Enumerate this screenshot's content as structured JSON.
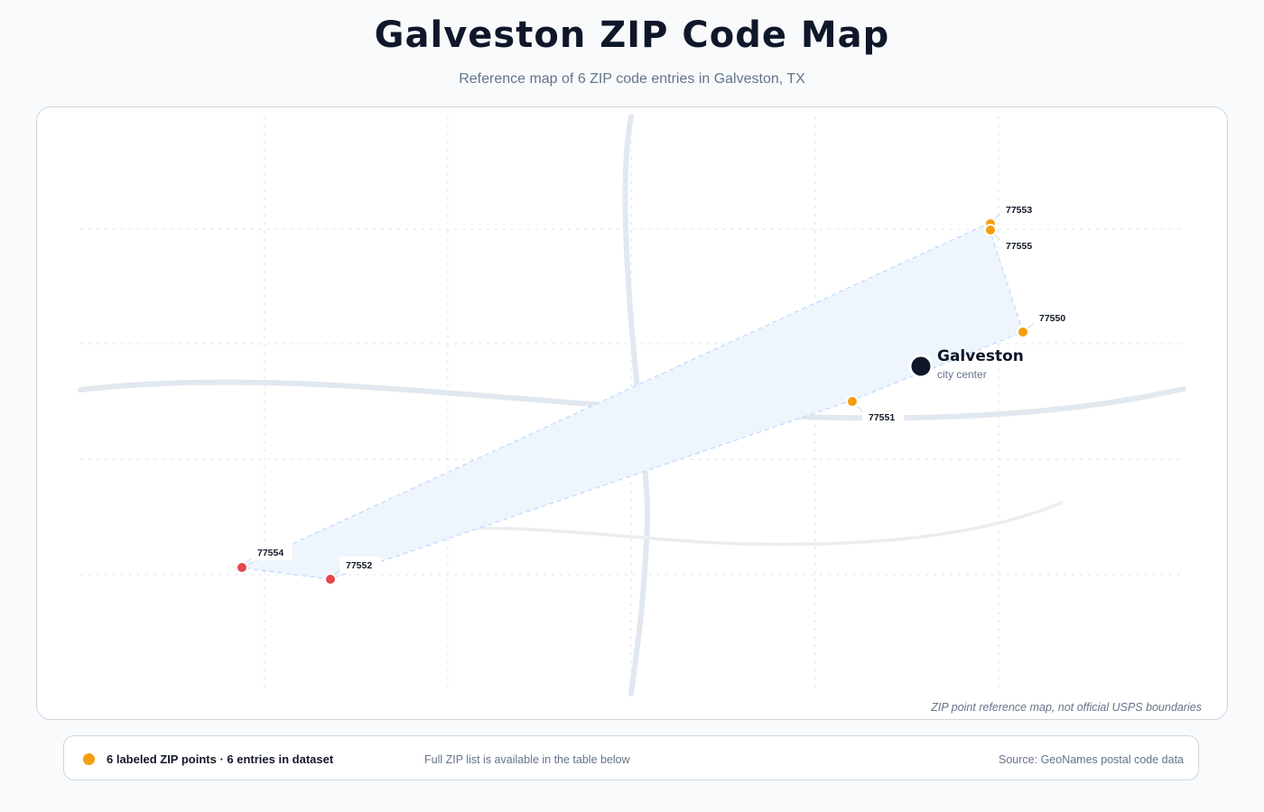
{
  "title": "Galveston ZIP Code Map",
  "subtitle": "Reference map of 6 ZIP code entries in Galveston, TX",
  "map": {
    "note": "ZIP point reference map, not official USPS boundaries",
    "city": {
      "name": "Galveston",
      "sublabel": "city center"
    },
    "zip_points": [
      {
        "zip": "77553",
        "color": "#f59e0b"
      },
      {
        "zip": "77555",
        "color": "#f59e0b"
      },
      {
        "zip": "77550",
        "color": "#f59e0b"
      },
      {
        "zip": "77551",
        "color": "#f59e0b"
      },
      {
        "zip": "77554",
        "color": "#e5484d"
      },
      {
        "zip": "77552",
        "color": "#e5484d"
      }
    ],
    "colors": {
      "coverage_fill": "#eff5fd",
      "coverage_stroke": "#bfdbfe",
      "road": "#e2e8f0",
      "city_marker": "#0f172a"
    }
  },
  "footer": {
    "count_text": "6 labeled ZIP points · 6 entries in dataset",
    "note": "Full ZIP list is available in the table below",
    "source": "Source: GeoNames postal code data",
    "legend_color": "#f59e0b"
  }
}
